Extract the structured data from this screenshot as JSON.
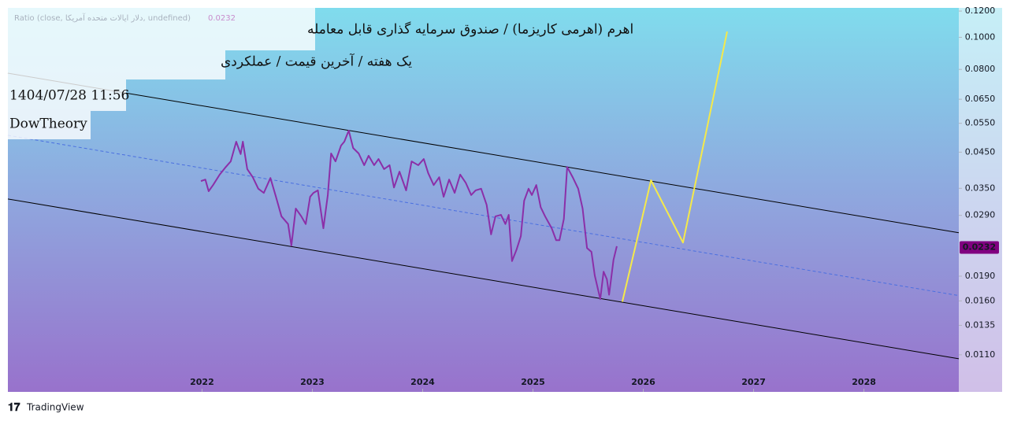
{
  "chart_data": {
    "type": "line",
    "title_lines": [
      "اهرم (اهرمی کاریزما) / صندوق سرمایه گذاری قابل معامله",
      "یک هفته / آخرین قیمت / عملکردی",
      "1404/07/28 11:56",
      "DowTheory"
    ],
    "legend_text": "Ratio (close, دلار ایالات متحده آمریکا, undefined)",
    "last_price": 0.0232,
    "last_price_color": "#800080",
    "footer": "TradingView",
    "log_scale": true,
    "grid": false,
    "xlim": [
      2020.24,
      2028.86
    ],
    "xticks": [
      2022,
      2023,
      2024,
      2025,
      2026,
      2027,
      2028
    ],
    "ylim": [
      0.0085,
      0.1227
    ],
    "yticks": [
      {
        "value": 0.011,
        "label": "0.0110"
      },
      {
        "value": 0.0135,
        "label": "0.0135"
      },
      {
        "value": 0.016,
        "label": "0.0160"
      },
      {
        "value": 0.019,
        "label": "0.0190"
      },
      {
        "value": 0.029,
        "label": "0.0290"
      },
      {
        "value": 0.035,
        "label": "0.0350"
      },
      {
        "value": 0.045,
        "label": "0.0450"
      },
      {
        "value": 0.055,
        "label": "0.0550"
      },
      {
        "value": 0.065,
        "label": "0.0650"
      },
      {
        "value": 0.08,
        "label": "0.0800"
      },
      {
        "value": 0.1,
        "label": "0.1000"
      },
      {
        "value": 0.12,
        "label": "0.1200"
      }
    ],
    "series": [
      {
        "color": "#000000",
        "dash": false,
        "x": [
          2020.24,
          2028.86
        ],
        "values": [
          0.0779,
          0.0257
        ]
      },
      {
        "color": "#4a6fe0",
        "dash": true,
        "x": [
          2020.24,
          2028.86
        ],
        "values": [
          0.0506,
          0.0166
        ]
      },
      {
        "color": "#000000",
        "dash": false,
        "x": [
          2020.24,
          2028.86
        ],
        "values": [
          0.0325,
          0.0107
        ]
      },
      {
        "color": "#f5e94a",
        "dash": false,
        "x": [
          2025.81,
          2026.07,
          2026.36,
          2026.76
        ],
        "values": [
          0.0159,
          0.037,
          0.024,
          0.1041
        ]
      },
      {
        "color": "#8b2fa8",
        "dash": false,
        "x": [
          2021.99,
          2022.03,
          2022.06,
          2022.1,
          2022.16,
          2022.21,
          2022.26,
          2022.31,
          2022.35,
          2022.37,
          2022.41,
          2022.46,
          2022.51,
          2022.56,
          2022.62,
          2022.67,
          2022.72,
          2022.78,
          2022.81,
          2022.85,
          2022.9,
          2022.94,
          2022.98,
          2023.01,
          2023.05,
          2023.1,
          2023.14,
          2023.17,
          2023.21,
          2023.26,
          2023.29,
          2023.33,
          2023.37,
          2023.42,
          2023.47,
          2023.51,
          2023.56,
          2023.6,
          2023.65,
          2023.7,
          2023.74,
          2023.79,
          2023.85,
          2023.9,
          2023.96,
          2024.01,
          2024.05,
          2024.1,
          2024.15,
          2024.19,
          2024.24,
          2024.29,
          2024.34,
          2024.39,
          2024.44,
          2024.48,
          2024.53,
          2024.58,
          2024.62,
          2024.66,
          2024.71,
          2024.75,
          2024.78,
          2024.81,
          2024.85,
          2024.89,
          2024.92,
          2024.96,
          2024.99,
          2025.03,
          2025.07,
          2025.11,
          2025.17,
          2025.21,
          2025.24,
          2025.28,
          2025.31,
          2025.36,
          2025.41,
          2025.45,
          2025.49,
          2025.53,
          2025.56,
          2025.61,
          2025.64,
          2025.67,
          2025.69,
          2025.73,
          2025.76
        ],
        "values": [
          0.0368,
          0.0372,
          0.0343,
          0.0358,
          0.0385,
          0.0404,
          0.0422,
          0.0484,
          0.0444,
          0.0484,
          0.04,
          0.0378,
          0.0349,
          0.0339,
          0.0376,
          0.033,
          0.0288,
          0.0273,
          0.0235,
          0.0304,
          0.0288,
          0.0273,
          0.033,
          0.0339,
          0.0345,
          0.0265,
          0.0334,
          0.0446,
          0.0422,
          0.0471,
          0.0484,
          0.0523,
          0.0463,
          0.0446,
          0.0411,
          0.0439,
          0.0411,
          0.0429,
          0.04,
          0.0411,
          0.0352,
          0.0393,
          0.0345,
          0.0422,
          0.0411,
          0.0429,
          0.0389,
          0.0358,
          0.0378,
          0.033,
          0.0372,
          0.0339,
          0.0385,
          0.0364,
          0.0334,
          0.0345,
          0.0349,
          0.0312,
          0.0254,
          0.0288,
          0.0291,
          0.0273,
          0.0291,
          0.0211,
          0.0228,
          0.0251,
          0.0321,
          0.0349,
          0.0334,
          0.0358,
          0.0307,
          0.0288,
          0.0265,
          0.0244,
          0.0244,
          0.0283,
          0.0406,
          0.0378,
          0.0349,
          0.0304,
          0.0231,
          0.0225,
          0.0191,
          0.0162,
          0.0196,
          0.0186,
          0.0167,
          0.0213,
          0.0234
        ]
      }
    ]
  }
}
